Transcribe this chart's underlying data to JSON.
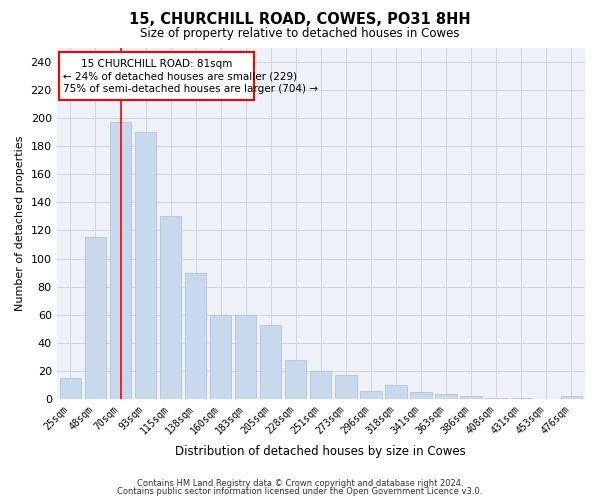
{
  "title1": "15, CHURCHILL ROAD, COWES, PO31 8HH",
  "title2": "Size of property relative to detached houses in Cowes",
  "xlabel": "Distribution of detached houses by size in Cowes",
  "ylabel": "Number of detached properties",
  "categories": [
    "25sqm",
    "48sqm",
    "70sqm",
    "93sqm",
    "115sqm",
    "138sqm",
    "160sqm",
    "183sqm",
    "205sqm",
    "228sqm",
    "251sqm",
    "273sqm",
    "296sqm",
    "318sqm",
    "341sqm",
    "363sqm",
    "386sqm",
    "408sqm",
    "431sqm",
    "453sqm",
    "476sqm"
  ],
  "values": [
    15,
    115,
    197,
    190,
    130,
    90,
    60,
    60,
    53,
    28,
    20,
    17,
    6,
    10,
    5,
    4,
    2,
    1,
    1,
    0,
    2
  ],
  "bar_color": "#c9d9ed",
  "bar_edge_color": "#a8bfd4",
  "red_line_x": 2.0,
  "annotation_title": "15 CHURCHILL ROAD: 81sqm",
  "annotation_line1": "← 24% of detached houses are smaller (229)",
  "annotation_line2": "75% of semi-detached houses are larger (704) →",
  "ylim": [
    0,
    250
  ],
  "yticks": [
    0,
    20,
    40,
    60,
    80,
    100,
    120,
    140,
    160,
    180,
    200,
    220,
    240
  ],
  "footer1": "Contains HM Land Registry data © Crown copyright and database right 2024.",
  "footer2": "Contains public sector information licensed under the Open Government Licence v3.0.",
  "grid_color": "#ccd5e0",
  "bg_color": "#eef2f8"
}
